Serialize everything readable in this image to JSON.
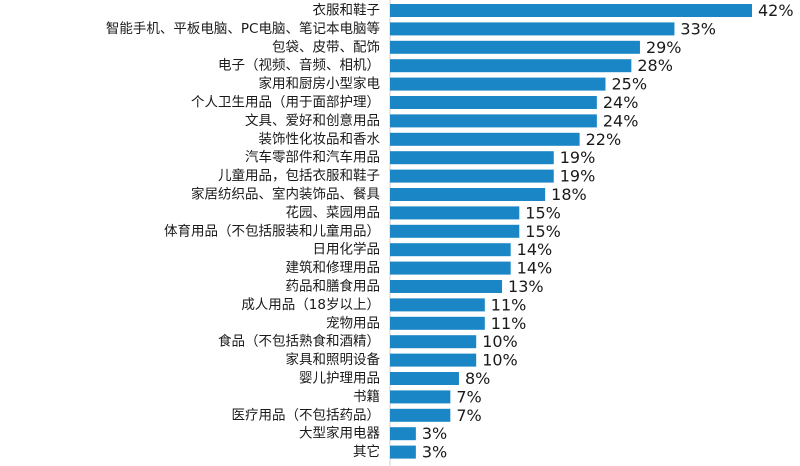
{
  "chart_data": {
    "type": "bar",
    "orientation": "horizontal",
    "title": "",
    "xlabel": "",
    "ylabel": "",
    "xlim": [
      0,
      42
    ],
    "grid": false,
    "legend": "none",
    "bar_color": "#1a86c6",
    "categories": [
      "衣服和鞋子",
      "智能手机、平板电脑、PC电脑、笔记本电脑等",
      "包袋、皮带、配饰",
      "电子（视频、音频、相机）",
      "家用和厨房小型家电",
      "个人卫生用品（用于面部护理）",
      "文具、爱好和创意用品",
      "装饰性化妆品和香水",
      "汽车零部件和汽车用品",
      "儿童用品，包括衣服和鞋子",
      "家居纺织品、室内装饰品、餐具",
      "花园、菜园用品",
      "体育用品（不包括服装和儿童用品）",
      "日用化学品",
      "建筑和修理用品",
      "药品和膳食用品",
      "成人用品（18岁以上）",
      "宠物用品",
      "食品（不包括熟食和酒精）",
      "家具和照明设备",
      "婴儿护理用品",
      "书籍",
      "医疗用品（不包括药品）",
      "大型家用电器",
      "其它"
    ],
    "values": [
      42,
      33,
      29,
      28,
      25,
      24,
      24,
      22,
      19,
      19,
      18,
      15,
      15,
      14,
      14,
      13,
      11,
      11,
      10,
      10,
      8,
      7,
      7,
      3,
      3
    ],
    "value_labels": [
      "42%",
      "33%",
      "29%",
      "28%",
      "25%",
      "24%",
      "24%",
      "22%",
      "19%",
      "19%",
      "18%",
      "15%",
      "15%",
      "14%",
      "14%",
      "13%",
      "11%",
      "11%",
      "10%",
      "10%",
      "8%",
      "7%",
      "7%",
      "3%",
      "3%"
    ]
  }
}
